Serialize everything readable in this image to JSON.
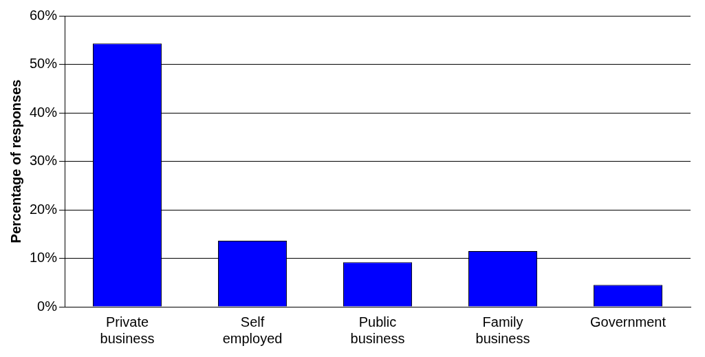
{
  "chart_data": {
    "type": "bar",
    "ylabel": "Percentage of responses",
    "categories": [
      "Private business",
      "Self employed",
      "Public business",
      "Family business",
      "Government"
    ],
    "values": [
      54.3,
      13.6,
      9.2,
      11.5,
      4.5
    ],
    "color": "#0000ff",
    "ylim": [
      0,
      60
    ],
    "yticks": [
      {
        "value": 0,
        "label": "0%"
      },
      {
        "value": 10,
        "label": "10%"
      },
      {
        "value": 20,
        "label": "20%"
      },
      {
        "value": 30,
        "label": "30%"
      },
      {
        "value": 40,
        "label": "40%"
      },
      {
        "value": 50,
        "label": "50%"
      },
      {
        "value": 60,
        "label": "60%"
      }
    ],
    "grid": "y",
    "legend": false
  }
}
